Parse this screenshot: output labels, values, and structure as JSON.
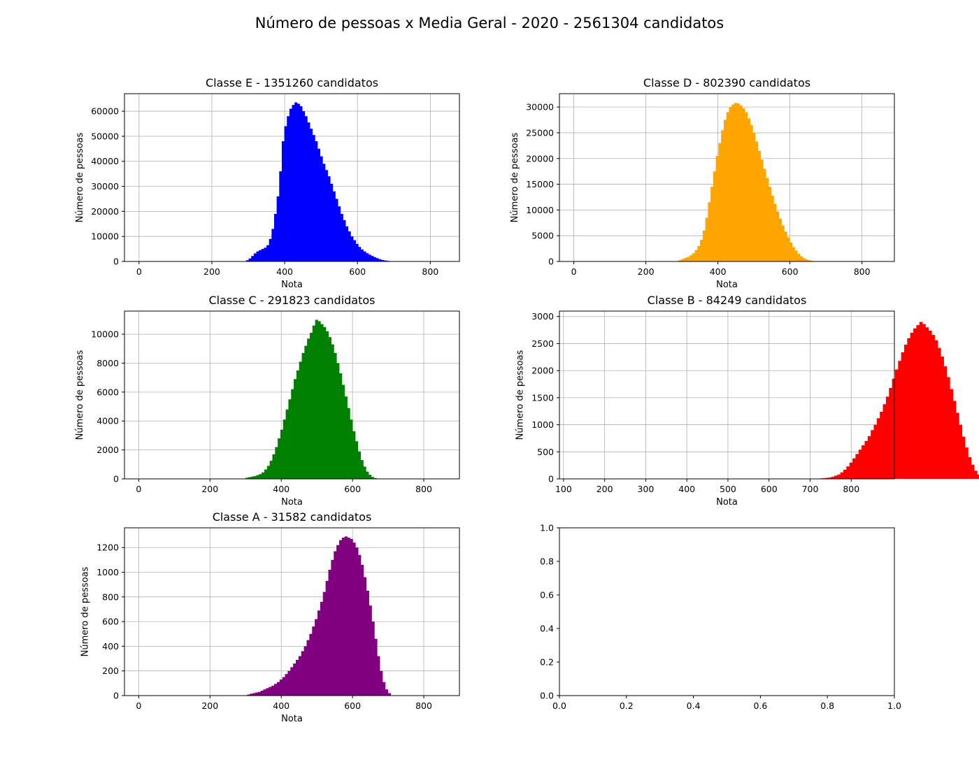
{
  "figure": {
    "title": "Número de pessoas x Media Geral - 2020 - 2561304 candidatos"
  },
  "chart_data": [
    {
      "type": "bar",
      "kind": "histogram",
      "title": "Classe E - 1351260 candidatos",
      "xlabel": "Nota",
      "ylabel": "Número de pessoas",
      "color": "#0000ff",
      "grid": true,
      "xlim": [
        -40,
        880
      ],
      "ylim": [
        0,
        67000
      ],
      "xticks": [
        0,
        200,
        400,
        600,
        800
      ],
      "yticks": [
        0,
        10000,
        20000,
        30000,
        40000,
        50000,
        60000
      ],
      "bin_start": 0,
      "bin_width": 7,
      "values": [
        5,
        5,
        5,
        5,
        5,
        5,
        5,
        5,
        5,
        5,
        5,
        5,
        5,
        5,
        5,
        5,
        5,
        5,
        5,
        5,
        5,
        5,
        5,
        5,
        5,
        5,
        5,
        5,
        5,
        5,
        5,
        5,
        5,
        5,
        5,
        5,
        5,
        5,
        5,
        5,
        50,
        150,
        500,
        1200,
        2200,
        3200,
        4000,
        4500,
        5000,
        5500,
        6500,
        9000,
        13000,
        19000,
        26000,
        36000,
        48000,
        54000,
        58000,
        61000,
        62500,
        63500,
        63000,
        62000,
        60000,
        58000,
        55500,
        53000,
        50500,
        48000,
        45000,
        42000,
        39000,
        36500,
        34000,
        31000,
        28000,
        25000,
        22000,
        19000,
        16500,
        14000,
        12000,
        10000,
        8500,
        7000,
        5800,
        4800,
        4000,
        3300,
        2700,
        2200,
        1700,
        1300,
        900,
        600,
        400,
        250,
        150,
        80,
        50,
        30
      ]
    },
    {
      "type": "bar",
      "kind": "histogram",
      "title": "Classe D - 802390 candidatos",
      "xlabel": "Nota",
      "ylabel": "Número de pessoas",
      "color": "#ffa500",
      "grid": true,
      "xlim": [
        -40,
        890
      ],
      "ylim": [
        0,
        32600
      ],
      "xticks": [
        0,
        200,
        400,
        600,
        800
      ],
      "yticks": [
        0,
        5000,
        10000,
        15000,
        20000,
        25000,
        30000
      ],
      "bin_start": 0,
      "bin_width": 7.3,
      "values": [
        3,
        3,
        3,
        3,
        3,
        3,
        3,
        3,
        3,
        3,
        3,
        3,
        3,
        3,
        3,
        3,
        3,
        3,
        3,
        3,
        3,
        3,
        3,
        3,
        3,
        3,
        3,
        3,
        3,
        3,
        3,
        3,
        3,
        3,
        3,
        3,
        3,
        3,
        3,
        100,
        300,
        500,
        700,
        900,
        1200,
        1600,
        2200,
        3000,
        4200,
        6000,
        8500,
        11500,
        14500,
        17500,
        20500,
        23000,
        25500,
        27500,
        29000,
        30000,
        30500,
        30800,
        30700,
        30300,
        29800,
        29000,
        27800,
        26500,
        25000,
        23300,
        21500,
        19800,
        18000,
        16200,
        14500,
        12800,
        11200,
        9700,
        8300,
        7000,
        5800,
        4700,
        3700,
        2800,
        2100,
        1500,
        1000,
        650,
        400,
        250,
        130,
        60,
        20
      ]
    },
    {
      "type": "bar",
      "kind": "histogram",
      "title": "Classe C - 291823 candidatos",
      "xlabel": "Nota",
      "ylabel": "Número de pessoas",
      "color": "#008000",
      "grid": true,
      "xlim": [
        -40,
        900
      ],
      "ylim": [
        0,
        11600
      ],
      "xticks": [
        0,
        200,
        400,
        600,
        800
      ],
      "yticks": [
        0,
        2000,
        4000,
        6000,
        8000,
        10000
      ],
      "bin_start": 0,
      "bin_width": 7.5,
      "values": [
        2,
        2,
        2,
        2,
        2,
        2,
        2,
        2,
        2,
        2,
        2,
        2,
        2,
        2,
        2,
        2,
        2,
        2,
        2,
        2,
        2,
        2,
        2,
        2,
        2,
        2,
        2,
        2,
        2,
        2,
        2,
        2,
        2,
        2,
        2,
        2,
        2,
        2,
        2,
        2,
        80,
        120,
        160,
        200,
        260,
        330,
        450,
        650,
        900,
        1250,
        1700,
        2200,
        2800,
        3400,
        4100,
        4800,
        5500,
        6200,
        6900,
        7500,
        8100,
        8700,
        9200,
        9700,
        10100,
        10600,
        11000,
        10900,
        10700,
        10500,
        10200,
        9800,
        9300,
        8700,
        8000,
        7300,
        6500,
        5700,
        4900,
        4100,
        3300,
        2600,
        1900,
        1300,
        850,
        500,
        280,
        130,
        50
      ]
    },
    {
      "type": "bar",
      "kind": "histogram",
      "title": "Classe B - 84249 candidatos",
      "xlabel": "Nota",
      "ylabel": "Número de pessoas",
      "color": "#ff0000",
      "grid": true,
      "xlim": [
        90,
        905
      ],
      "ylim": [
        0,
        3100
      ],
      "xticks": [
        100,
        200,
        300,
        400,
        500,
        600,
        700,
        800
      ],
      "yticks": [
        0,
        500,
        1000,
        1500,
        2000,
        2500,
        3000
      ],
      "bin_start": 100,
      "bin_width": 7.4,
      "values": [
        1,
        1,
        1,
        1,
        1,
        1,
        1,
        1,
        1,
        1,
        1,
        1,
        1,
        1,
        1,
        1,
        1,
        1,
        1,
        1,
        1,
        1,
        1,
        1,
        1,
        1,
        1,
        1,
        1,
        1,
        1,
        1,
        1,
        1,
        1,
        1,
        1,
        1,
        1,
        1,
        1,
        1,
        1,
        1,
        1,
        1,
        1,
        1,
        1,
        1,
        1,
        1,
        1,
        1,
        1,
        1,
        1,
        1,
        1,
        1,
        1,
        1,
        1,
        1,
        1,
        1,
        1,
        1,
        1,
        1,
        1,
        1,
        1,
        1,
        1,
        1,
        1,
        1,
        1,
        1,
        1,
        2,
        3,
        5,
        8,
        12,
        18,
        25,
        40,
        60,
        80,
        120,
        170,
        230,
        300,
        380,
        460,
        540,
        620,
        700,
        790,
        900,
        1000,
        1120,
        1240,
        1380,
        1520,
        1680,
        1850,
        2020,
        2180,
        2340,
        2480,
        2600,
        2700,
        2780,
        2840,
        2900,
        2860,
        2800,
        2740,
        2660,
        2560,
        2420,
        2260,
        2080,
        1880,
        1660,
        1440,
        1220,
        1000,
        780,
        580,
        400,
        260,
        150,
        80,
        30
      ]
    },
    {
      "type": "bar",
      "kind": "histogram",
      "title": "Classe A - 31582 candidatos",
      "xlabel": "Nota",
      "ylabel": "Número de pessoas",
      "color": "#800080",
      "grid": true,
      "xlim": [
        -40,
        900
      ],
      "ylim": [
        0,
        1360
      ],
      "xticks": [
        0,
        200,
        400,
        600,
        800
      ],
      "yticks": [
        0,
        200,
        400,
        600,
        800,
        1000,
        1200
      ],
      "bin_start": 0,
      "bin_width": 7.6,
      "values": [
        1,
        1,
        1,
        1,
        1,
        1,
        1,
        1,
        1,
        1,
        1,
        1,
        1,
        1,
        1,
        1,
        1,
        1,
        1,
        1,
        1,
        1,
        1,
        1,
        1,
        1,
        1,
        1,
        1,
        1,
        1,
        1,
        1,
        1,
        1,
        1,
        1,
        1,
        1,
        1,
        8,
        15,
        20,
        25,
        30,
        40,
        50,
        60,
        70,
        80,
        95,
        110,
        130,
        150,
        175,
        200,
        230,
        260,
        290,
        320,
        360,
        400,
        450,
        500,
        560,
        620,
        690,
        760,
        840,
        930,
        1020,
        1100,
        1170,
        1220,
        1260,
        1280,
        1290,
        1280,
        1270,
        1240,
        1200,
        1140,
        1060,
        960,
        850,
        730,
        600,
        460,
        320,
        200,
        110,
        50,
        20
      ]
    },
    {
      "type": "bar",
      "kind": "empty",
      "title": "",
      "grid": false,
      "xlim": [
        0,
        1
      ],
      "ylim": [
        0,
        1
      ],
      "xticks": [
        0.0,
        0.2,
        0.4,
        0.6,
        0.8,
        1.0
      ],
      "yticks": [
        0.0,
        0.2,
        0.4,
        0.6,
        0.8,
        1.0
      ],
      "values": []
    }
  ]
}
